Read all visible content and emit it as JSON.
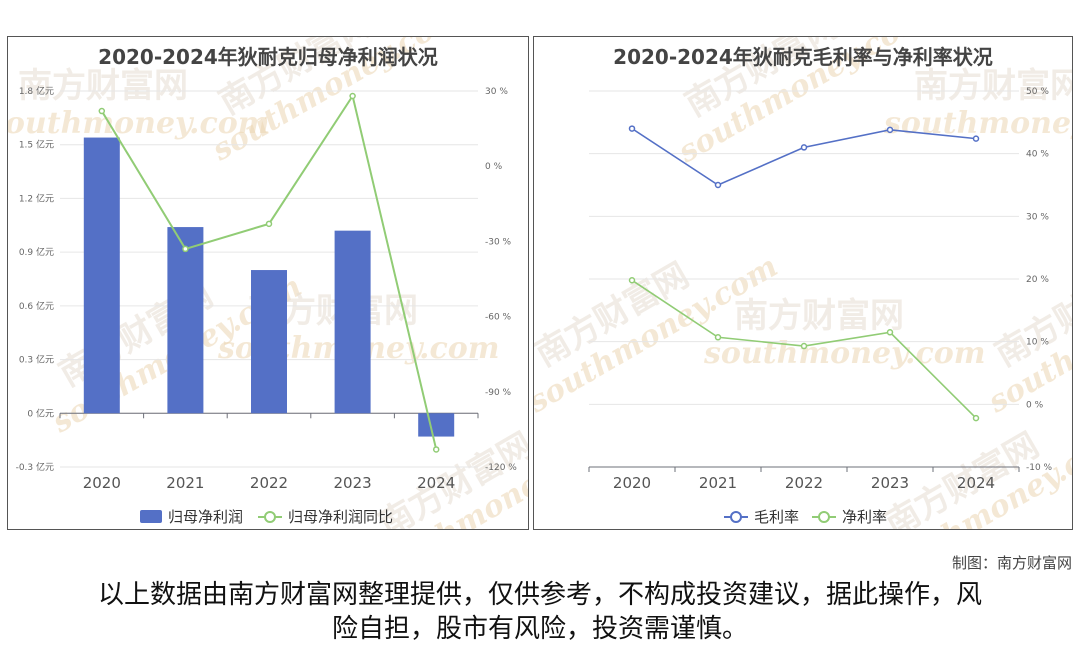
{
  "chart_data": [
    {
      "type": "bar+line",
      "title": "2020-2024年狄耐克归母净利润状况",
      "categories": [
        "2020",
        "2021",
        "2022",
        "2023",
        "2024"
      ],
      "left_axis": {
        "unit": "亿元",
        "ylim": [
          -0.3,
          1.8
        ],
        "ticks": [
          "1.8 亿元",
          "1.5 亿元",
          "1.2 亿元",
          "0.9 亿元",
          "0.6 亿元",
          "0.3 亿元",
          "0 亿元",
          "-0.3 亿元"
        ]
      },
      "right_axis": {
        "unit": "%",
        "ylim": [
          -120,
          30
        ],
        "ticks": [
          "30 %",
          "0 %",
          "-30 %",
          "-60 %",
          "-90 %",
          "-120 %"
        ]
      },
      "series": [
        {
          "name": "归母净利润",
          "kind": "bar",
          "axis": "left",
          "color": "#5470c6",
          "values": [
            1.54,
            1.04,
            0.8,
            1.02,
            -0.13
          ]
        },
        {
          "name": "归母净利润同比",
          "kind": "line",
          "axis": "right",
          "color": "#91cc75",
          "values": [
            22,
            -33,
            -23,
            28,
            -113
          ]
        }
      ],
      "legend_position": "bottom-center"
    },
    {
      "type": "line",
      "title": "2020-2024年狄耐克毛利率与净利率状况",
      "categories": [
        "2020",
        "2021",
        "2022",
        "2023",
        "2024"
      ],
      "right_axis": {
        "unit": "%",
        "ylim": [
          -10,
          50
        ],
        "ticks": [
          "50 %",
          "40 %",
          "30 %",
          "20 %",
          "10 %",
          "0 %",
          "-10 %"
        ]
      },
      "series": [
        {
          "name": "毛利率",
          "color": "#5470c6",
          "values": [
            44.0,
            35.0,
            41.0,
            43.8,
            42.4
          ]
        },
        {
          "name": "净利率",
          "color": "#91cc75",
          "values": [
            19.8,
            10.7,
            9.3,
            11.5,
            -2.2
          ]
        }
      ],
      "legend_position": "bottom-center"
    }
  ],
  "watermark": {
    "cn": "南方财富网",
    "en": "southmoney.com"
  },
  "footer": {
    "maker": "制图：南方财富网",
    "disclaimer_line1": "以上数据由南方财富网整理提供，仅供参考，不构成投资建议，据此操作，风",
    "disclaimer_line2": "险自担，股市有风险，投资需谨慎。"
  }
}
